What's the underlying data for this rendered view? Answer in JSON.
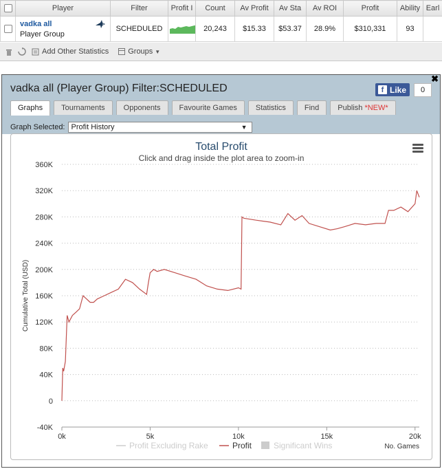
{
  "table": {
    "headers": [
      "Player",
      "Filter",
      "Profit I",
      "Count",
      "Av Profit",
      "Av Sta",
      "Av ROI",
      "Profit",
      "Ability",
      "Earl"
    ],
    "row": {
      "player_name": "vadka all",
      "player_sub": "Player Group",
      "filter": "SCHEDULED",
      "count": "20,243",
      "av_profit": "$15.33",
      "av_stake": "$53.37",
      "av_roi": "28.9%",
      "profit": "$310,331",
      "ability": "93"
    }
  },
  "toolbar": {
    "add_stats": "Add Other Statistics",
    "groups": "Groups"
  },
  "panel": {
    "title": "vadka all (Player Group) Filter:SCHEDULED",
    "like_label": "Like",
    "like_count": "0",
    "tabs": [
      "Graphs",
      "Tournaments",
      "Opponents",
      "Favourite Games",
      "Statistics",
      "Find",
      "Publish"
    ],
    "new_badge": "*NEW*",
    "graph_selected_label": "Graph Selected:",
    "graph_selected_value": "Profit History"
  },
  "chart_data": {
    "type": "line",
    "title": "Total Profit",
    "subtitle": "Click and drag inside the plot area to zoom-in",
    "ylabel": "Cumulative Total (USD)",
    "xlabel": "No. Games",
    "ylim": [
      -40000,
      360000
    ],
    "xlim": [
      0,
      20243
    ],
    "y_ticks": [
      "360K",
      "320K",
      "280K",
      "240K",
      "200K",
      "160K",
      "120K",
      "80K",
      "40K",
      "0",
      "-40K"
    ],
    "x_ticks": [
      "0k",
      "5k",
      "10k",
      "15k",
      "20k"
    ],
    "legend": [
      "Profit Excluding Rake",
      "Profit",
      "Significant Wins"
    ],
    "series": [
      {
        "name": "Profit",
        "color": "#c0504d",
        "x": [
          0,
          50,
          100,
          200,
          300,
          400,
          600,
          800,
          1000,
          1200,
          1400,
          1600,
          1800,
          2000,
          2400,
          2800,
          3200,
          3600,
          4000,
          4400,
          4800,
          4900,
          5000,
          5200,
          5400,
          5800,
          6400,
          7000,
          7600,
          8200,
          8800,
          9400,
          10000,
          10150,
          10200,
          10300,
          11000,
          11800,
          12400,
          12800,
          13200,
          13600,
          14000,
          14600,
          15200,
          15600,
          16000,
          16600,
          17200,
          17800,
          18300,
          18500,
          18800,
          19200,
          19600,
          20000,
          20100,
          20243
        ],
        "y": [
          0,
          50000,
          45000,
          60000,
          130000,
          120000,
          130000,
          135000,
          140000,
          160000,
          155000,
          150000,
          150000,
          155000,
          160000,
          165000,
          170000,
          185000,
          180000,
          170000,
          162000,
          180000,
          195000,
          200000,
          197000,
          200000,
          195000,
          190000,
          185000,
          175000,
          170000,
          168000,
          172000,
          170000,
          280000,
          278000,
          275000,
          272000,
          268000,
          285000,
          275000,
          282000,
          270000,
          265000,
          260000,
          262000,
          265000,
          270000,
          268000,
          270000,
          270000,
          290000,
          290000,
          295000,
          288000,
          300000,
          320000,
          310000
        ]
      }
    ]
  }
}
